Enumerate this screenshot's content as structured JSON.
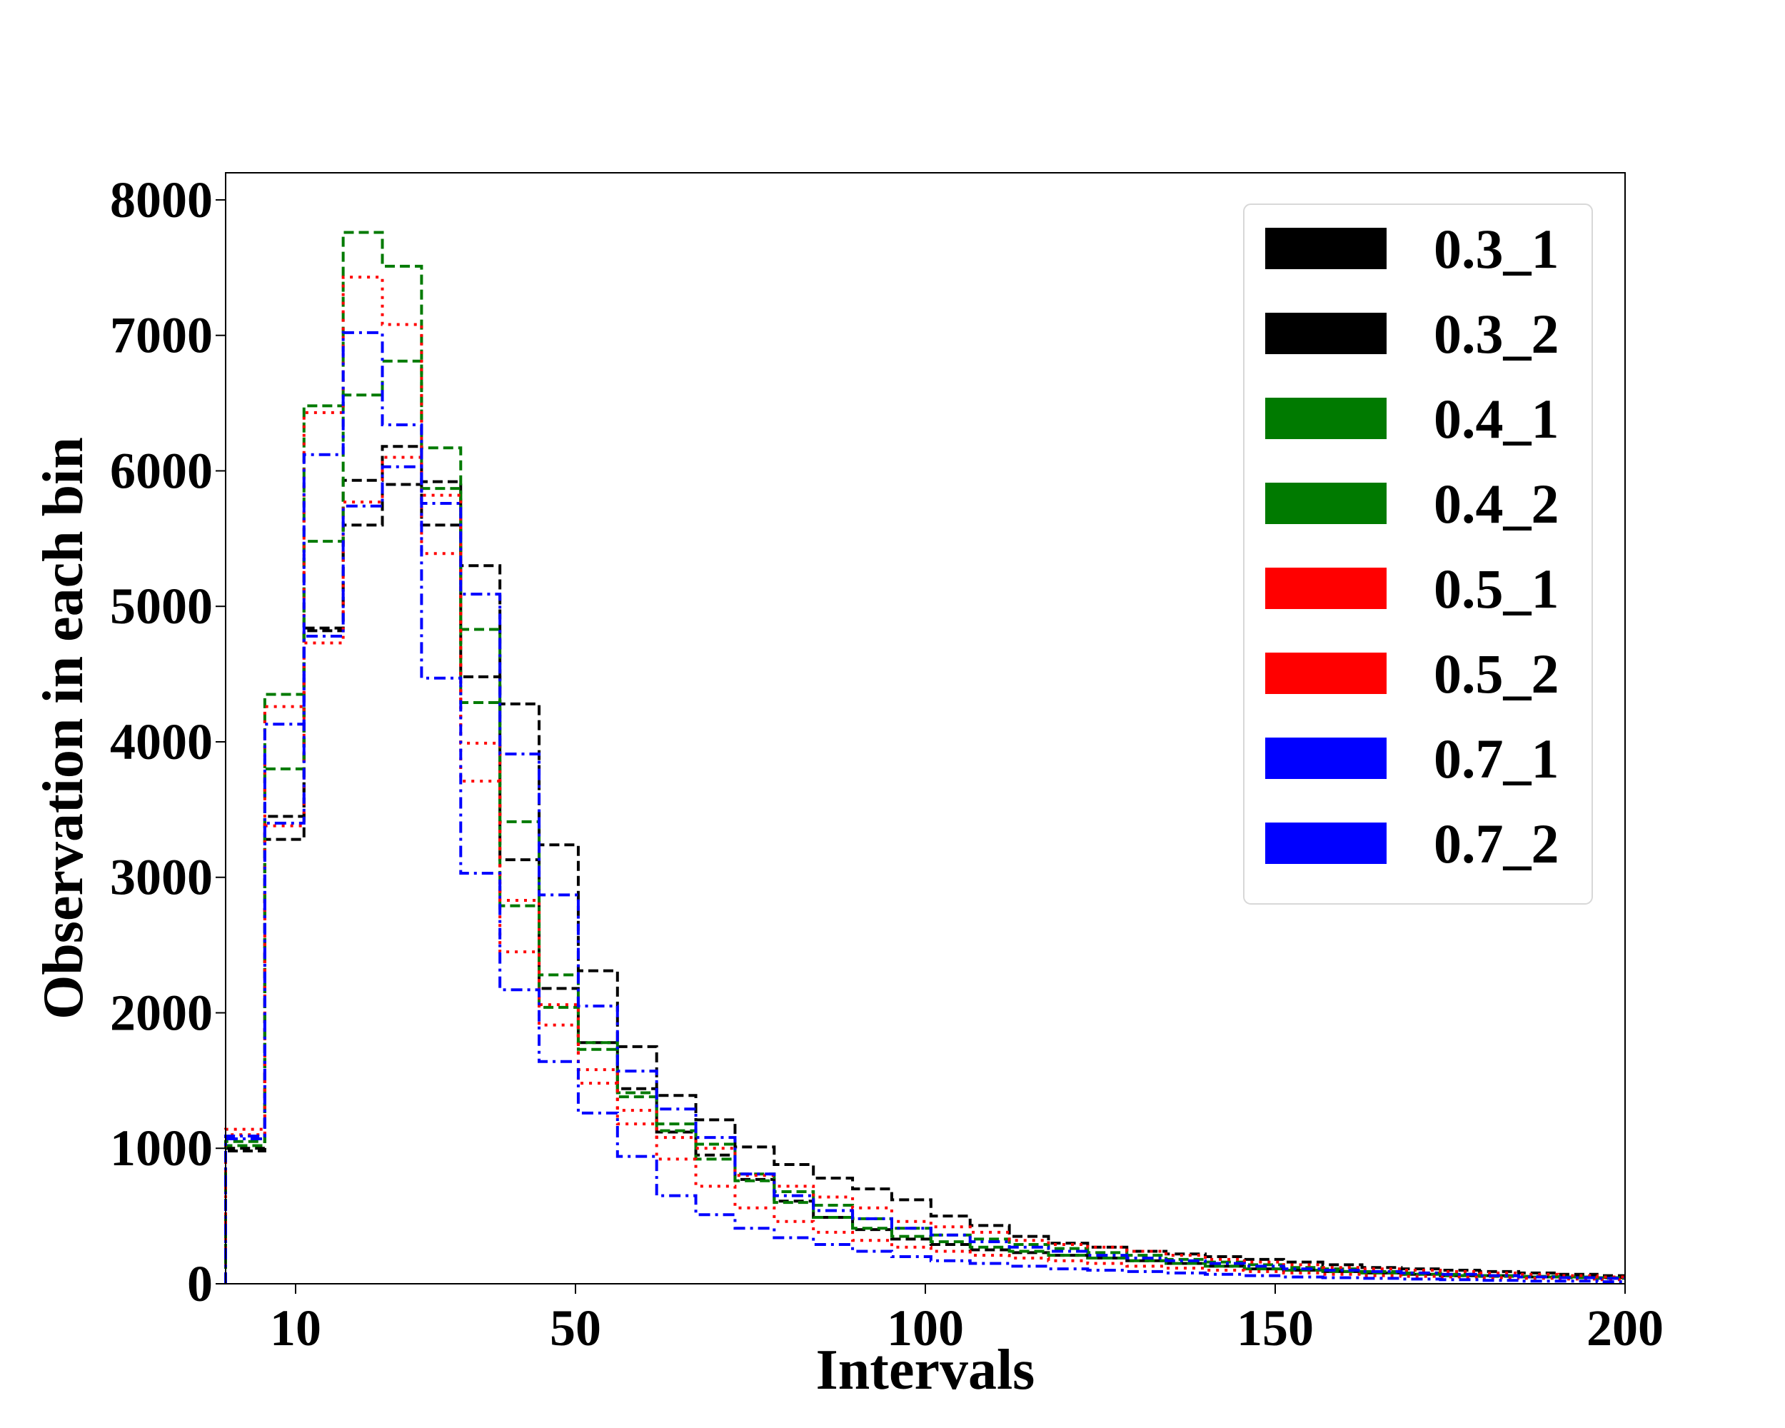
{
  "chart_data": {
    "type": "histogram-step",
    "xlabel": "Intervals",
    "ylabel": "Observation in each bin",
    "xlim": [
      0,
      200
    ],
    "ylim": [
      0,
      8200
    ],
    "xticks": [
      10,
      50,
      100,
      150,
      200
    ],
    "yticks": [
      0,
      1000,
      2000,
      3000,
      4000,
      5000,
      6000,
      7000,
      8000
    ],
    "grid": false,
    "legend_position": "top-right",
    "bin_edges": [
      0,
      5.6,
      11.2,
      16.8,
      22.4,
      28,
      33.6,
      39.2,
      44.8,
      50.4,
      56,
      61.6,
      67.2,
      72.8,
      78.4,
      84,
      89.6,
      95.2,
      100.8,
      106.4,
      112,
      117.6,
      123.2,
      128.8,
      134.4,
      140,
      145.6,
      151.2,
      156.8,
      162.4,
      168,
      173.6,
      179.2,
      184.8,
      190.4,
      196,
      201.6
    ],
    "series": [
      {
        "name": "0.3_1",
        "color": "#000000",
        "dash": "dashed",
        "values": [
          980,
          3280,
          4820,
          5600,
          5900,
          5600,
          4480,
          3130,
          2180,
          1780,
          1440,
          1120,
          950,
          770,
          610,
          490,
          400,
          330,
          290,
          250,
          230,
          210,
          190,
          170,
          150,
          130,
          110,
          100,
          90,
          80,
          70,
          60,
          60,
          50,
          50,
          45
        ]
      },
      {
        "name": "0.3_2",
        "color": "#000000",
        "dash": "dashed",
        "values": [
          1000,
          3450,
          4840,
          5930,
          6180,
          5920,
          5300,
          4280,
          3240,
          2310,
          1750,
          1390,
          1210,
          1010,
          880,
          780,
          700,
          620,
          500,
          430,
          350,
          300,
          270,
          240,
          220,
          200,
          180,
          160,
          140,
          120,
          110,
          100,
          90,
          80,
          70,
          60
        ]
      },
      {
        "name": "0.4_1",
        "color": "#007a00",
        "dash": "dashed",
        "values": [
          1020,
          4350,
          6480,
          7760,
          7510,
          6170,
          4290,
          2790,
          2040,
          1730,
          1380,
          1130,
          920,
          760,
          600,
          490,
          410,
          350,
          310,
          270,
          240,
          210,
          190,
          170,
          150,
          130,
          110,
          100,
          90,
          80,
          70,
          60,
          55,
          50,
          45,
          40
        ]
      },
      {
        "name": "0.4_2",
        "color": "#007a00",
        "dash": "dashed",
        "values": [
          1050,
          3800,
          5480,
          6560,
          6810,
          5870,
          4830,
          3410,
          2280,
          1780,
          1410,
          1180,
          1030,
          810,
          680,
          580,
          480,
          410,
          360,
          330,
          290,
          260,
          230,
          210,
          180,
          160,
          140,
          120,
          110,
          90,
          80,
          70,
          60,
          55,
          50,
          45
        ]
      },
      {
        "name": "0.5_1",
        "color": "#ff0000",
        "dash": "dotted",
        "values": [
          1140,
          4260,
          6430,
          7430,
          7080,
          5820,
          3710,
          2450,
          1910,
          1480,
          1180,
          920,
          720,
          560,
          460,
          380,
          320,
          270,
          240,
          210,
          190,
          170,
          150,
          130,
          115,
          100,
          90,
          80,
          70,
          60,
          55,
          50,
          45,
          40,
          35,
          30
        ]
      },
      {
        "name": "0.5_2",
        "color": "#ff0000",
        "dash": "dotted",
        "values": [
          1100,
          3380,
          4730,
          5770,
          6100,
          5390,
          3990,
          2830,
          2060,
          1580,
          1280,
          1080,
          1000,
          800,
          720,
          640,
          560,
          460,
          420,
          380,
          320,
          290,
          270,
          240,
          210,
          180,
          160,
          140,
          120,
          110,
          100,
          90,
          80,
          70,
          60,
          50
        ]
      },
      {
        "name": "0.7_1",
        "color": "#0000ff",
        "dash": "dashdot",
        "values": [
          1090,
          4130,
          6120,
          7020,
          6340,
          4470,
          3030,
          2170,
          1640,
          1260,
          940,
          650,
          510,
          410,
          340,
          290,
          240,
          200,
          170,
          150,
          130,
          110,
          100,
          90,
          80,
          70,
          60,
          50,
          45,
          40,
          35,
          30,
          25,
          20,
          20,
          15
        ]
      },
      {
        "name": "0.7_2",
        "color": "#0000ff",
        "dash": "dashdot",
        "values": [
          1070,
          3400,
          4780,
          5740,
          6030,
          5760,
          5090,
          3910,
          2870,
          2050,
          1570,
          1290,
          1080,
          810,
          650,
          540,
          480,
          410,
          360,
          310,
          270,
          240,
          210,
          190,
          170,
          150,
          130,
          110,
          100,
          90,
          80,
          70,
          60,
          50,
          45,
          40
        ]
      }
    ]
  }
}
